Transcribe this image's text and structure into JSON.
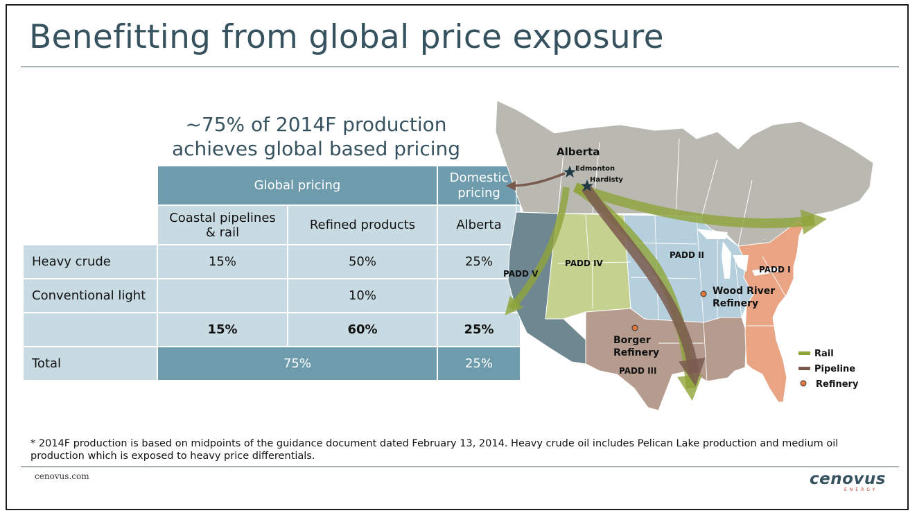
{
  "slide": {
    "title": "Benefitting from global price exposure",
    "headline_line1": "~75% of 2014F production",
    "headline_line2": "achieves global based pricing"
  },
  "table": {
    "group_headers": {
      "global": "Global pricing",
      "domestic": "Domestic pricing"
    },
    "columns": [
      "Coastal pipelines & rail",
      "Refined products",
      "Alberta"
    ],
    "rows": [
      {
        "label": "Heavy crude",
        "values": [
          "15%",
          "50%",
          "25%"
        ]
      },
      {
        "label": "Conventional light",
        "values": [
          "",
          "10%",
          ""
        ]
      },
      {
        "label": "",
        "values": [
          "15%",
          "60%",
          "25%"
        ]
      }
    ],
    "total": {
      "label": "Total",
      "global": "75%",
      "domestic": "25%"
    }
  },
  "map": {
    "labels": {
      "alberta": "Alberta",
      "edmonton": "Edmonton",
      "hardisty": "Hardisty",
      "padd_1": "PADD I",
      "padd_2": "PADD II",
      "padd_3": "PADD III",
      "padd_4": "PADD IV",
      "padd_5": "PADD V",
      "wood_river_1": "Wood River",
      "wood_river_2": "Refinery",
      "borger_1": "Borger",
      "borger_2": "Refinery"
    },
    "legend": {
      "rail": "Rail",
      "pipeline": "Pipeline",
      "refinery": "Refinery"
    },
    "colors": {
      "rail": "#8ea43a",
      "pipeline": "#7a5a4f",
      "refinery": "#e07a3e",
      "padd_1": "#e9a484",
      "padd_2": "#b5cfdc",
      "padd_3": "#b59c8f",
      "padd_4": "#c5d18f",
      "padd_5": "#6e8791",
      "canada": "#b9b9b2"
    }
  },
  "footnote": {
    "text": "* 2014F production is based on midpoints of the guidance document dated February 13, 2014. Heavy crude oil includes Pelican Lake production and medium oil production which is exposed to heavy price differentials."
  },
  "footer": {
    "url": "cenovus.com",
    "logo_word": "cenovus",
    "logo_sub": "ENERGY"
  }
}
